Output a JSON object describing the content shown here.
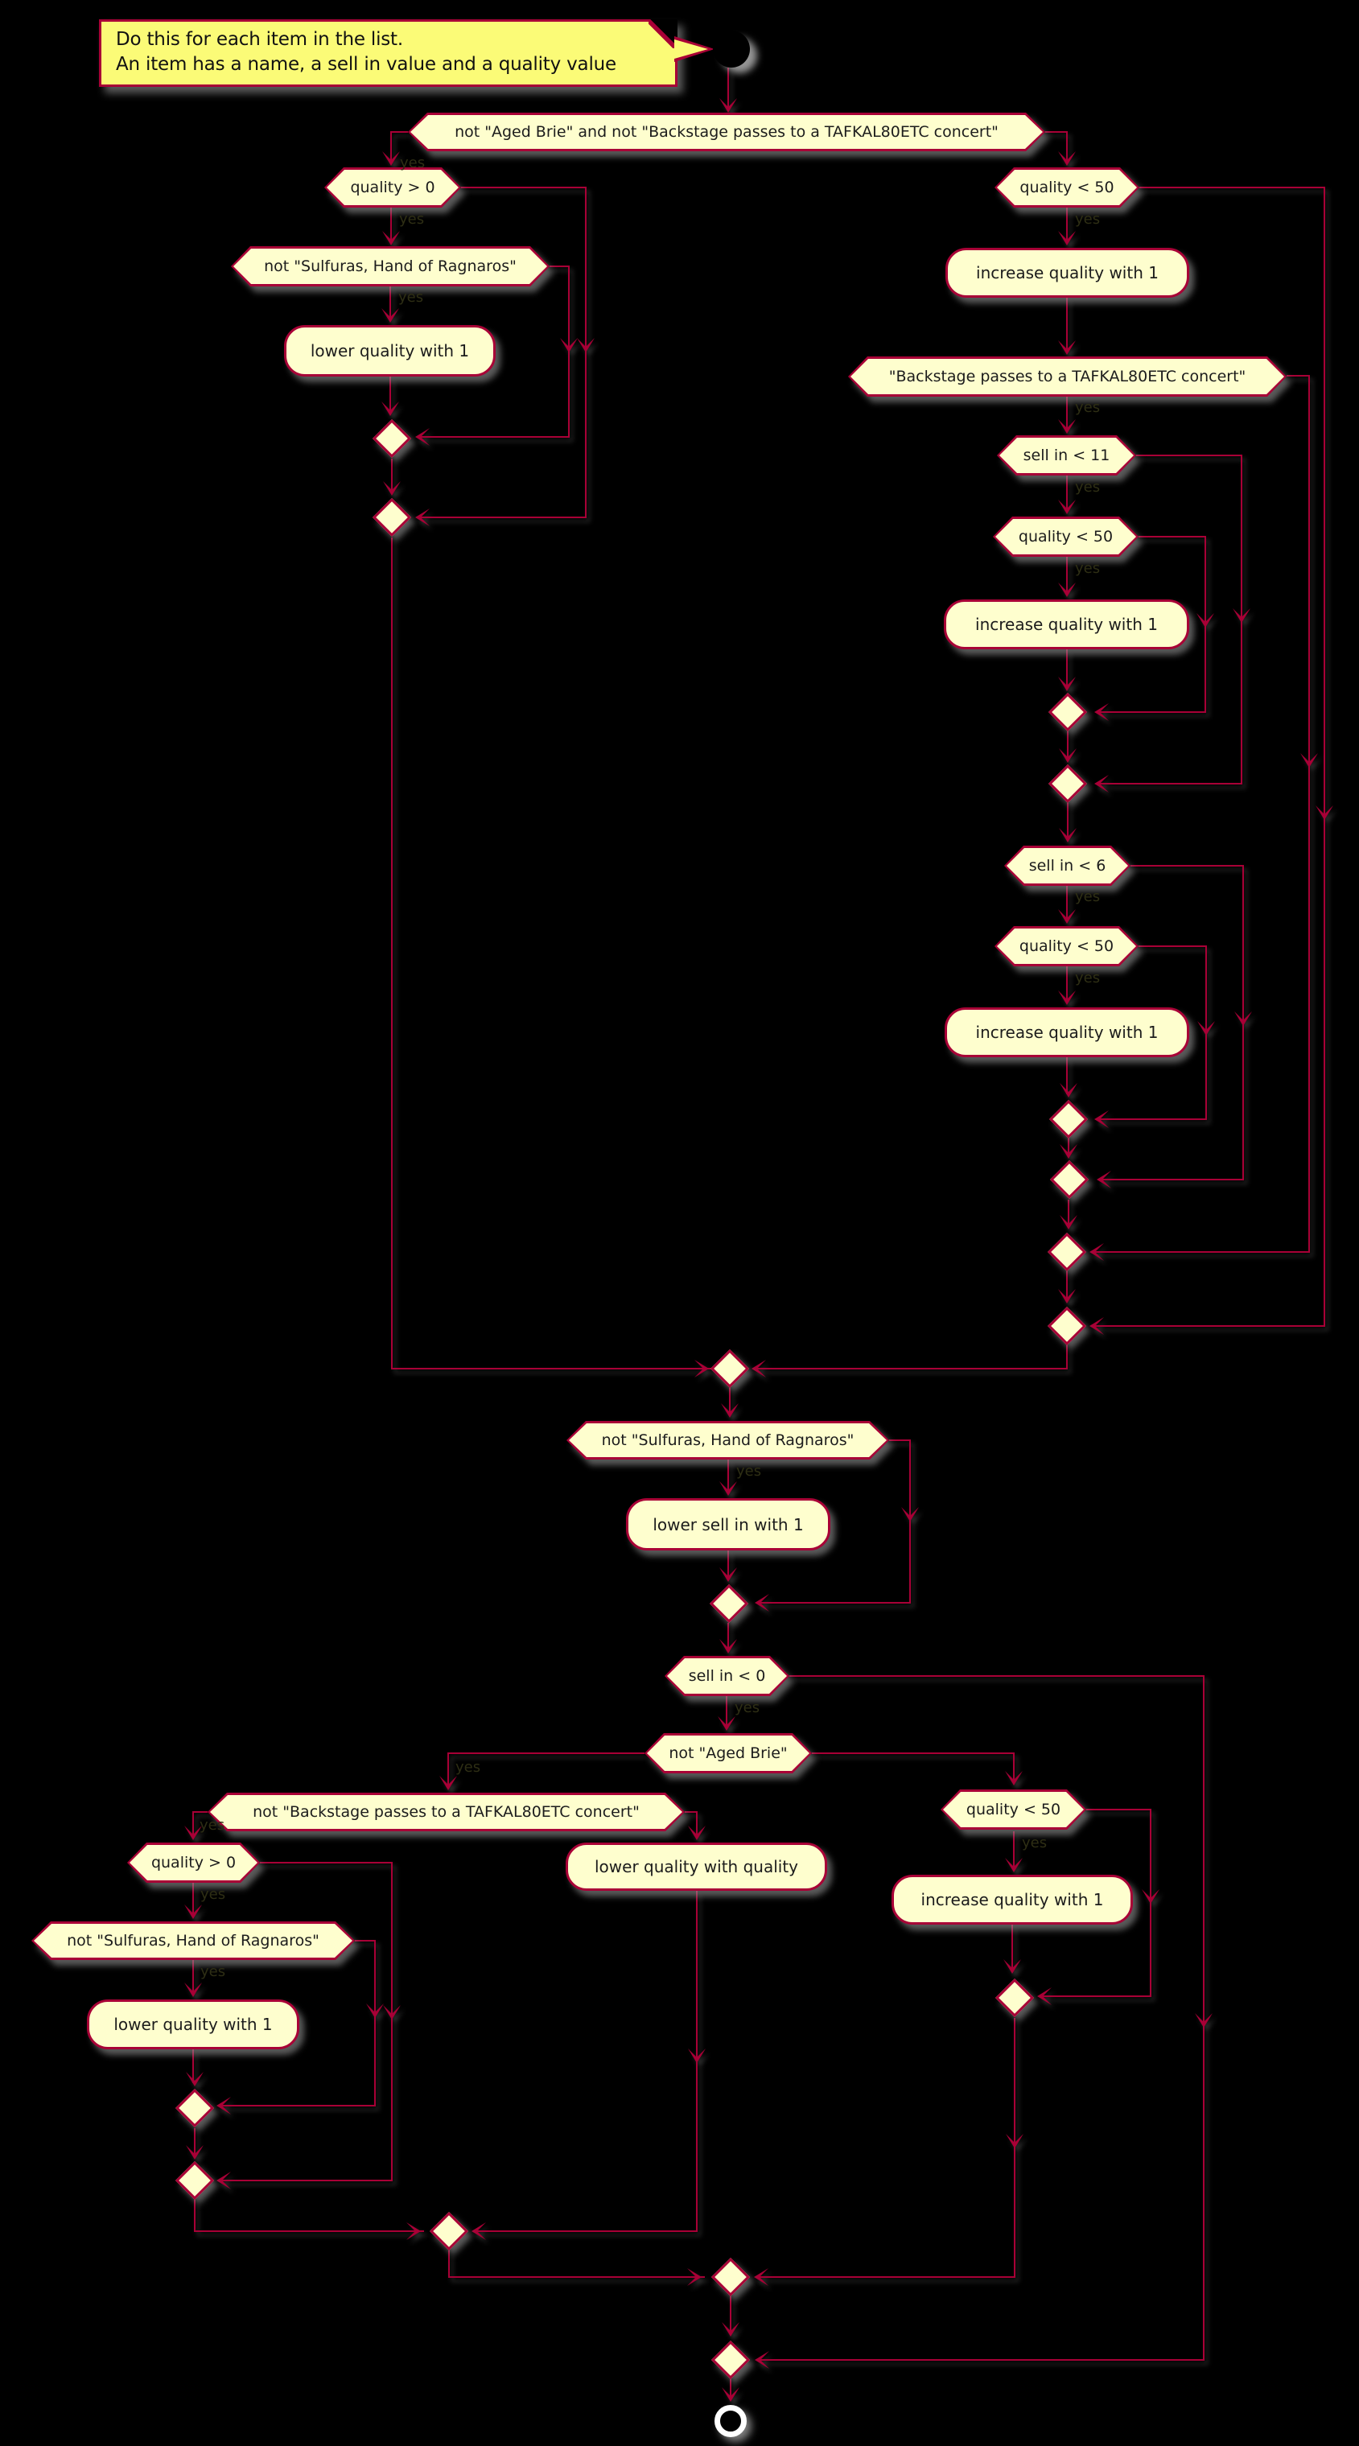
{
  "diagram": {
    "background": "#000000",
    "colors": {
      "node_fill": "#FEFECE",
      "border_and_lines": "#A80036",
      "note_fill": "#FBFB77",
      "text": "#1c1c1c",
      "branch_label": "#2e2e14"
    },
    "note": {
      "line1": "Do this for each item in the list.",
      "line2": "An item has a name, a sell in value and a quality value"
    },
    "branch_label_yes": "yes",
    "nodes": {
      "cond_main": {
        "label": "not \"Aged Brie\" and not \"Backstage passes to a TAFKAL80ETC concert\""
      },
      "cond_quality_gt0_a": {
        "label": "quality > 0"
      },
      "cond_not_sulfuras_a": {
        "label": "not \"Sulfuras, Hand of Ragnaros\""
      },
      "act_lower_quality_1a": {
        "label": "lower quality with 1"
      },
      "cond_quality_lt50_a": {
        "label": "quality < 50"
      },
      "act_increase_quality_1a": {
        "label": "increase quality with 1"
      },
      "cond_backstage": {
        "label": "\"Backstage passes to a TAFKAL80ETC concert\""
      },
      "cond_sellin_lt11": {
        "label": "sell in < 11"
      },
      "cond_quality_lt50_b": {
        "label": "quality < 50"
      },
      "act_increase_quality_1b": {
        "label": "increase quality with 1"
      },
      "cond_sellin_lt6": {
        "label": "sell in < 6"
      },
      "cond_quality_lt50_c": {
        "label": "quality < 50"
      },
      "act_increase_quality_1c": {
        "label": "increase quality with 1"
      },
      "cond_not_sulfuras_b": {
        "label": "not \"Sulfuras, Hand of Ragnaros\""
      },
      "act_lower_sellin_1": {
        "label": "lower sell in with 1"
      },
      "cond_sellin_lt0": {
        "label": "sell in < 0"
      },
      "cond_not_aged_brie": {
        "label": "not \"Aged Brie\""
      },
      "cond_not_backstage": {
        "label": "not \"Backstage passes to a TAFKAL80ETC concert\""
      },
      "cond_quality_gt0_b": {
        "label": "quality > 0"
      },
      "cond_not_sulfuras_c": {
        "label": "not \"Sulfuras, Hand of Ragnaros\""
      },
      "act_lower_quality_1b": {
        "label": "lower quality with 1"
      },
      "act_lower_quality_quality": {
        "label": "lower quality with quality"
      },
      "cond_quality_lt50_d": {
        "label": "quality < 50"
      },
      "act_increase_quality_1d": {
        "label": "increase quality with 1"
      }
    }
  }
}
